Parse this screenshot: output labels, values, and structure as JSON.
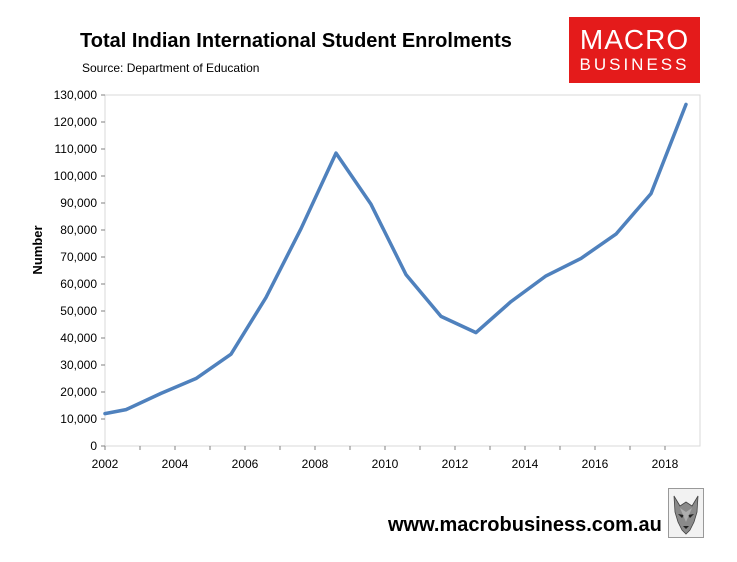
{
  "header": {
    "title": "Total Indian International Student Enrolments",
    "subtitle": "Source: Department of Education"
  },
  "logo": {
    "line1": "MACRO",
    "line2": "BUSINESS",
    "background_color": "#e41b1b"
  },
  "footer": {
    "website": "www.macrobusiness.com.au",
    "wolf_icon": "wolf-head-icon"
  },
  "chart_data": {
    "type": "line",
    "title": "Total Indian International Student Enrolments",
    "subtitle": "Source: Department of Education",
    "xlabel": "",
    "ylabel": "Number",
    "xlim": [
      2002,
      2019
    ],
    "ylim": [
      0,
      130000
    ],
    "x_ticks": [
      "2002",
      "2004",
      "2006",
      "2008",
      "2010",
      "2012",
      "2014",
      "2016",
      "2018"
    ],
    "y_ticks": [
      "0",
      "10,000",
      "20,000",
      "30,000",
      "40,000",
      "50,000",
      "60,000",
      "70,000",
      "80,000",
      "90,000",
      "100,000",
      "110,000",
      "120,000",
      "130,000"
    ],
    "grid": false,
    "line_color": "#4f81bd",
    "series": [
      {
        "x": [
          2002,
          2002.6,
          2003.6,
          2004.6,
          2005.6,
          2006.6,
          2007.6,
          2008.6,
          2009.6,
          2010.6,
          2011.6,
          2012.6,
          2013.6,
          2014.6,
          2015.6,
          2016.6,
          2017.6,
          2018.6
        ],
        "values": [
          12000,
          13500,
          19500,
          25000,
          34000,
          55000,
          80500,
          108500,
          89500,
          63500,
          48000,
          42000,
          53500,
          63000,
          69500,
          78500,
          93500,
          126500
        ]
      }
    ]
  }
}
